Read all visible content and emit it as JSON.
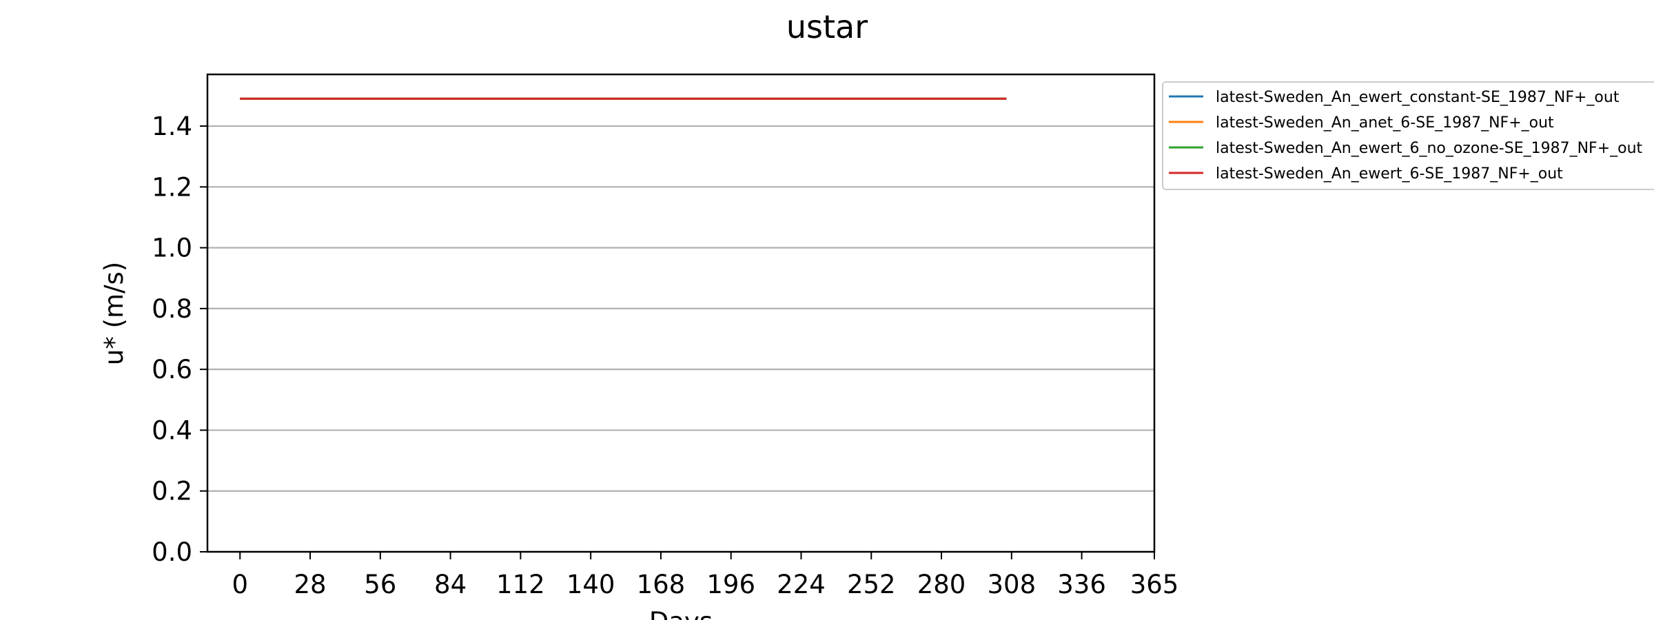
{
  "chart_data": {
    "type": "line",
    "title": "ustar",
    "xlabel": "Days",
    "ylabel": "u* (m/s)",
    "xlim": [
      -13,
      365
    ],
    "ylim": [
      0,
      1.57
    ],
    "xticks": [
      0,
      28,
      56,
      84,
      112,
      140,
      168,
      196,
      224,
      252,
      280,
      308,
      336,
      365
    ],
    "yticks": [
      0.0,
      0.2,
      0.4,
      0.6,
      0.8,
      1.0,
      1.2,
      1.4
    ],
    "ytick_labels": [
      "0.0",
      "0.2",
      "0.4",
      "0.6",
      "0.8",
      "1.0",
      "1.2",
      "1.4"
    ],
    "grid": "y",
    "legend_position": "outside-right",
    "series": [
      {
        "name": "latest-Sweden_An_ewert_constant-SE_1987_NF+_out",
        "color": "#1f77b4",
        "x": [
          0,
          306
        ],
        "y": [
          1.49,
          1.49
        ]
      },
      {
        "name": "latest-Sweden_An_anet_6-SE_1987_NF+_out",
        "color": "#ff7f0e",
        "x": [
          0,
          306
        ],
        "y": [
          1.49,
          1.49
        ]
      },
      {
        "name": "latest-Sweden_An_ewert_6_no_ozone-SE_1987_NF+_out",
        "color": "#2ca02c",
        "x": [
          0,
          306
        ],
        "y": [
          1.49,
          1.49
        ]
      },
      {
        "name": "latest-Sweden_An_ewert_6-SE_1987_NF+_out",
        "color": "#d62728",
        "x": [
          0,
          306
        ],
        "y": [
          1.49,
          1.49
        ]
      }
    ]
  }
}
